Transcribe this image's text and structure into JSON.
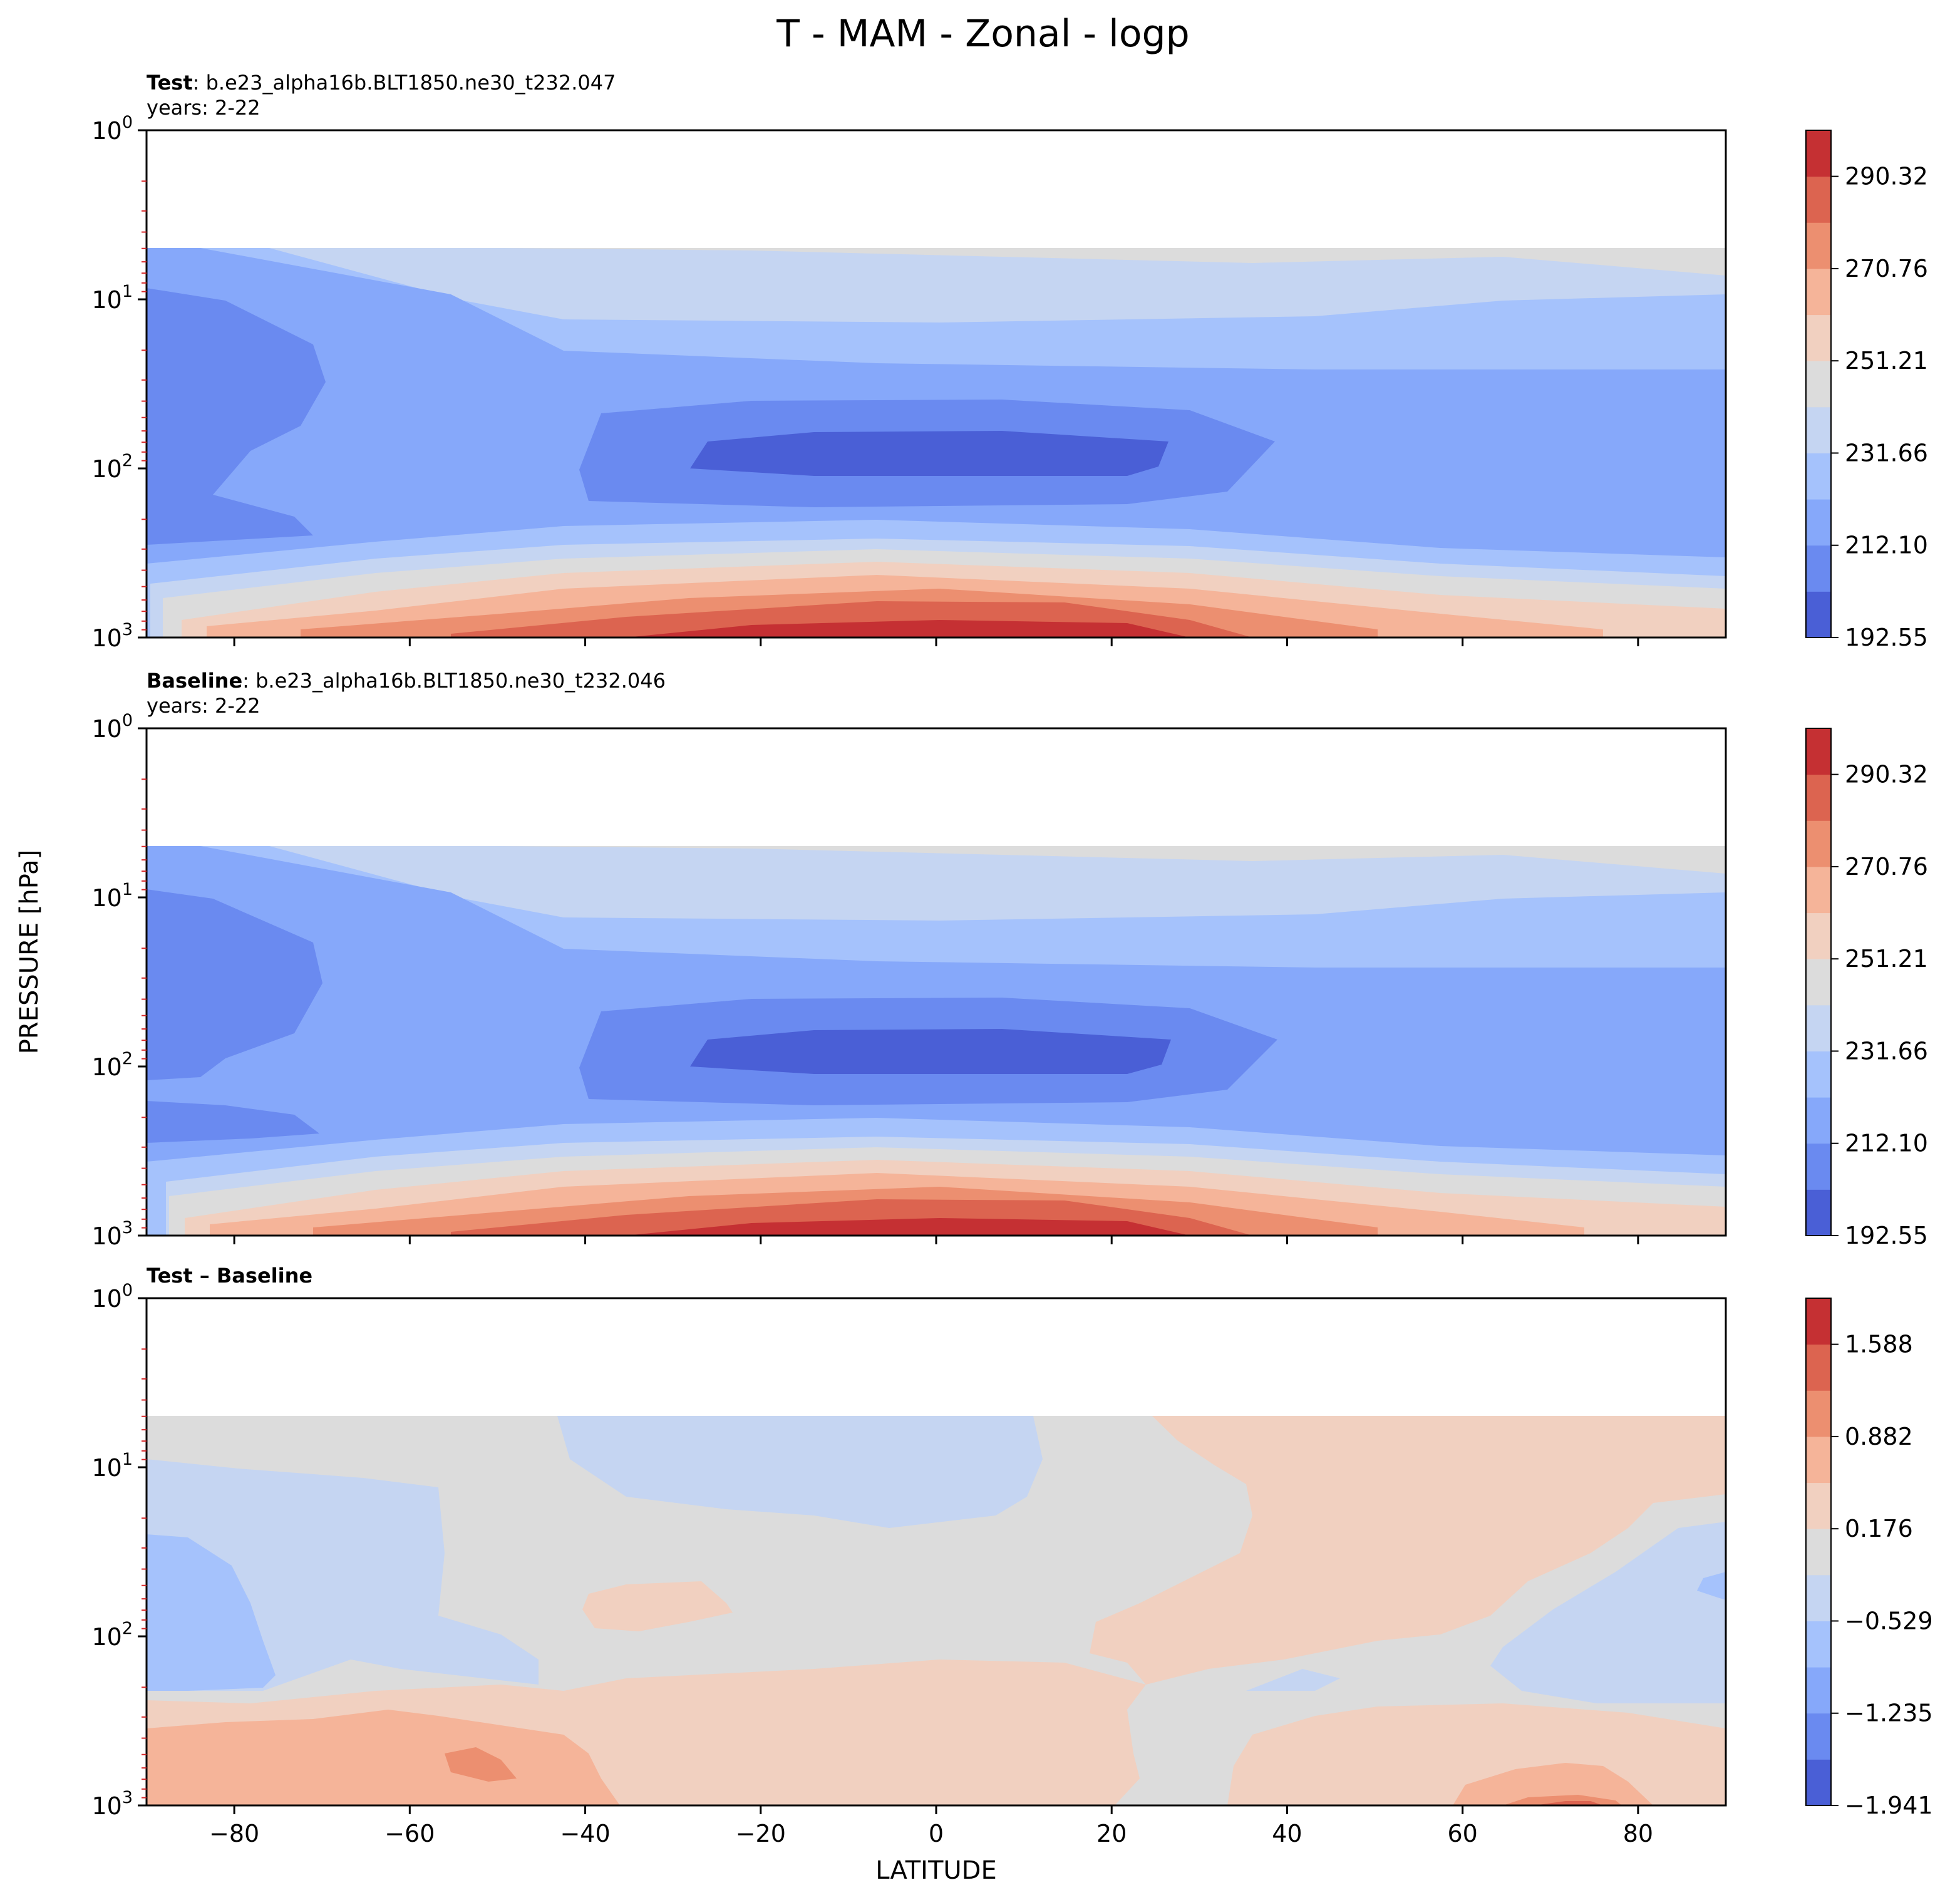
{
  "figure": {
    "title": "T - MAM - Zonal - logp",
    "ylabel": "PRESSURE [hPa]",
    "xlabel": "LATITUDE"
  },
  "colors": {
    "abs_levels": [
      "#4a5fd6",
      "#6a8af0",
      "#86a8fa",
      "#a5c2fc",
      "#c5d5f2",
      "#dcdcdc",
      "#f1d0c0",
      "#f5b499",
      "#ec8f70",
      "#dc6450",
      "#c53033"
    ],
    "diff_levels": [
      "#4a5fd6",
      "#6a8af0",
      "#86a8fa",
      "#a5c2fc",
      "#c5d5f2",
      "#dcdcdc",
      "#f1d0c0",
      "#f5b499",
      "#ec8f70",
      "#dc6450",
      "#c53033"
    ],
    "minor_tick": "#d62728"
  },
  "panels": [
    {
      "id": "test",
      "label_bold": "Test",
      "label_rest": ": b.e23_alpha16b.BLT1850.ne30_t232.047",
      "years": "years: 2-22",
      "colorbar_ticks": [
        "192.55",
        "212.10",
        "231.66",
        "251.21",
        "270.76",
        "290.32"
      ]
    },
    {
      "id": "baseline",
      "label_bold": "Baseline",
      "label_rest": ": b.e23_alpha16b.BLT1850.ne30_t232.046",
      "years": "years: 2-22",
      "colorbar_ticks": [
        "192.55",
        "212.10",
        "231.66",
        "251.21",
        "270.76",
        "290.32"
      ]
    },
    {
      "id": "diff",
      "label_bold": "Test – Baseline",
      "label_rest": "",
      "years": "",
      "colorbar_ticks": [
        "−1.941",
        "−1.235",
        "−0.529",
        "0.176",
        "0.882",
        "1.588"
      ]
    }
  ],
  "chart_data": [
    {
      "type": "heatmap",
      "title": "Test : b.e23_alpha16b.BLT1850.ne30_t232.047",
      "xlabel": "",
      "ylabel": "PRESSURE [hPa]",
      "xlim": [
        -90,
        90
      ],
      "ylim": [
        1000,
        1
      ],
      "yscale": "log",
      "xticks": [
        -80,
        -60,
        -40,
        -20,
        0,
        20,
        40,
        60,
        80
      ],
      "yticks": [
        "10^0",
        "10^1",
        "10^2",
        "10^3"
      ],
      "colorbar_levels": [
        192.55,
        202.33,
        212.1,
        221.88,
        231.66,
        241.43,
        251.21,
        260.99,
        270.76,
        280.54,
        290.32,
        300.1
      ],
      "data_top_pressure": 5,
      "features": [
        {
          "desc": "cold core",
          "lat_range": [
            -25,
            27
          ],
          "p_range": [
            70,
            130
          ],
          "value_approx": 195
        },
        {
          "desc": "warm surface maximum",
          "lat_range": [
            -30,
            30
          ],
          "p_range": [
            850,
            1000
          ],
          "value_approx": 296
        },
        {
          "desc": "upper stratosphere",
          "lat_range": [
            -30,
            90
          ],
          "p_range": [
            5,
            10
          ],
          "value_approx": 250
        }
      ]
    },
    {
      "type": "heatmap",
      "title": "Baseline : b.e23_alpha16b.BLT1850.ne30_t232.046",
      "xlabel": "",
      "ylabel": "PRESSURE [hPa]",
      "xlim": [
        -90,
        90
      ],
      "ylim": [
        1000,
        1
      ],
      "yscale": "log",
      "xticks": [
        -80,
        -60,
        -40,
        -20,
        0,
        20,
        40,
        60,
        80
      ],
      "yticks": [
        "10^0",
        "10^1",
        "10^2",
        "10^3"
      ],
      "colorbar_levels": [
        192.55,
        202.33,
        212.1,
        221.88,
        231.66,
        241.43,
        251.21,
        260.99,
        270.76,
        280.54,
        290.32,
        300.1
      ],
      "data_top_pressure": 5,
      "features": [
        {
          "desc": "cold core",
          "lat_range": [
            -25,
            27
          ],
          "p_range": [
            70,
            130
          ],
          "value_approx": 195
        },
        {
          "desc": "warm surface maximum",
          "lat_range": [
            -30,
            30
          ],
          "p_range": [
            850,
            1000
          ],
          "value_approx": 296
        },
        {
          "desc": "upper stratosphere",
          "lat_range": [
            -30,
            90
          ],
          "p_range": [
            5,
            10
          ],
          "value_approx": 250
        }
      ]
    },
    {
      "type": "heatmap",
      "title": "Test – Baseline",
      "xlabel": "LATITUDE",
      "ylabel": "PRESSURE [hPa]",
      "xlim": [
        -90,
        90
      ],
      "ylim": [
        1000,
        1
      ],
      "yscale": "log",
      "xticks": [
        -80,
        -60,
        -40,
        -20,
        0,
        20,
        40,
        60,
        80
      ],
      "yticks": [
        "10^0",
        "10^1",
        "10^2",
        "10^3"
      ],
      "colorbar_levels": [
        -1.941,
        -1.588,
        -1.235,
        -0.882,
        -0.529,
        -0.176,
        0.176,
        0.529,
        0.882,
        1.235,
        1.588,
        1.941
      ],
      "data_top_pressure": 5,
      "features": [
        {
          "desc": "near zero background",
          "lat_range": [
            -90,
            90
          ],
          "p_range": [
            5,
            1000
          ],
          "value_approx": 0
        },
        {
          "desc": "warm anomaly NH",
          "lat_range": [
            25,
            90
          ],
          "p_range": [
            5,
            100
          ],
          "value_approx": 0.4
        },
        {
          "desc": "cool anomaly SH",
          "lat_range": [
            -90,
            -75
          ],
          "p_range": [
            25,
            200
          ],
          "value_approx": -0.7
        },
        {
          "desc": "warm lower troposphere",
          "lat_range": [
            -90,
            30
          ],
          "p_range": [
            250,
            1000
          ],
          "value_approx": 0.5
        }
      ]
    }
  ]
}
